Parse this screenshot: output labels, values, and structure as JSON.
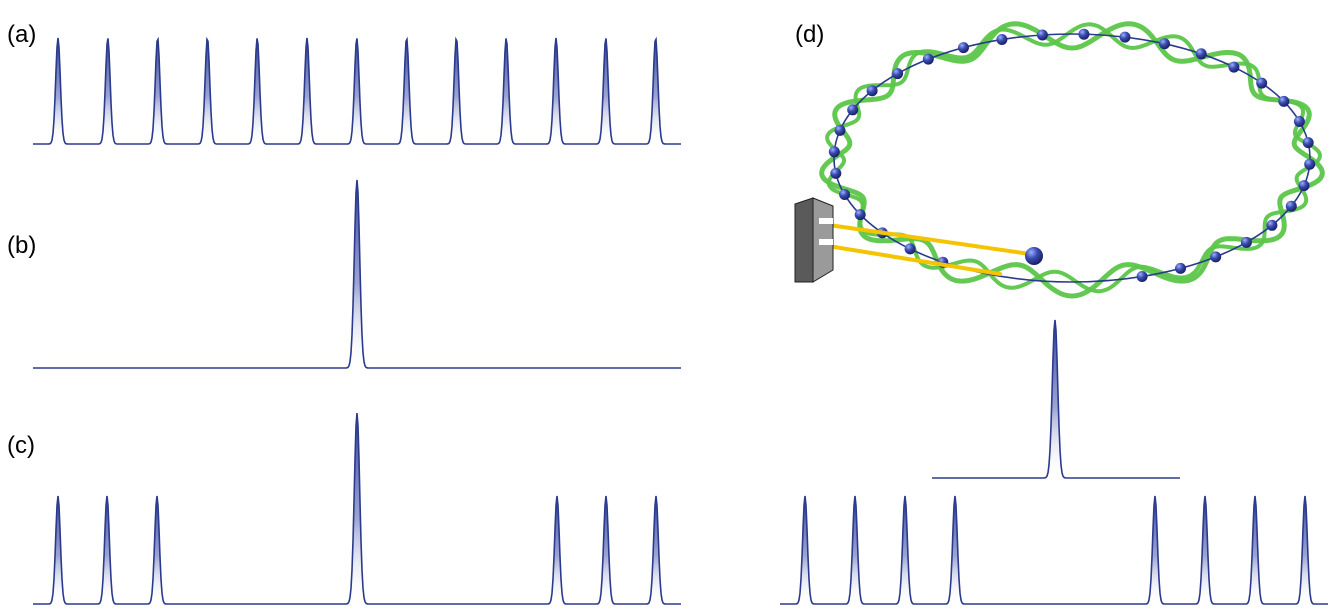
{
  "panels": {
    "a": {
      "label": "(a)"
    },
    "b": {
      "label": "(b)"
    },
    "c": {
      "label": "(c)"
    },
    "d": {
      "label": "(d)"
    }
  },
  "colors": {
    "pulse_line": "#2b3a8c",
    "pulse_fill_top": "#3a4aa0",
    "pulse_fill_bottom": "#ffffff",
    "wave": "#5cc64a",
    "electron": "#2d3d9a",
    "ring": "#2b3a8c",
    "photon_beam": "#f5c400",
    "detector": "#8f8f8f",
    "detector_edge": "#222222"
  },
  "icons": {
    "detector": "detector-plate-icon",
    "electron": "electron-bead-icon",
    "storage_ring": "storage-ring-icon"
  }
}
